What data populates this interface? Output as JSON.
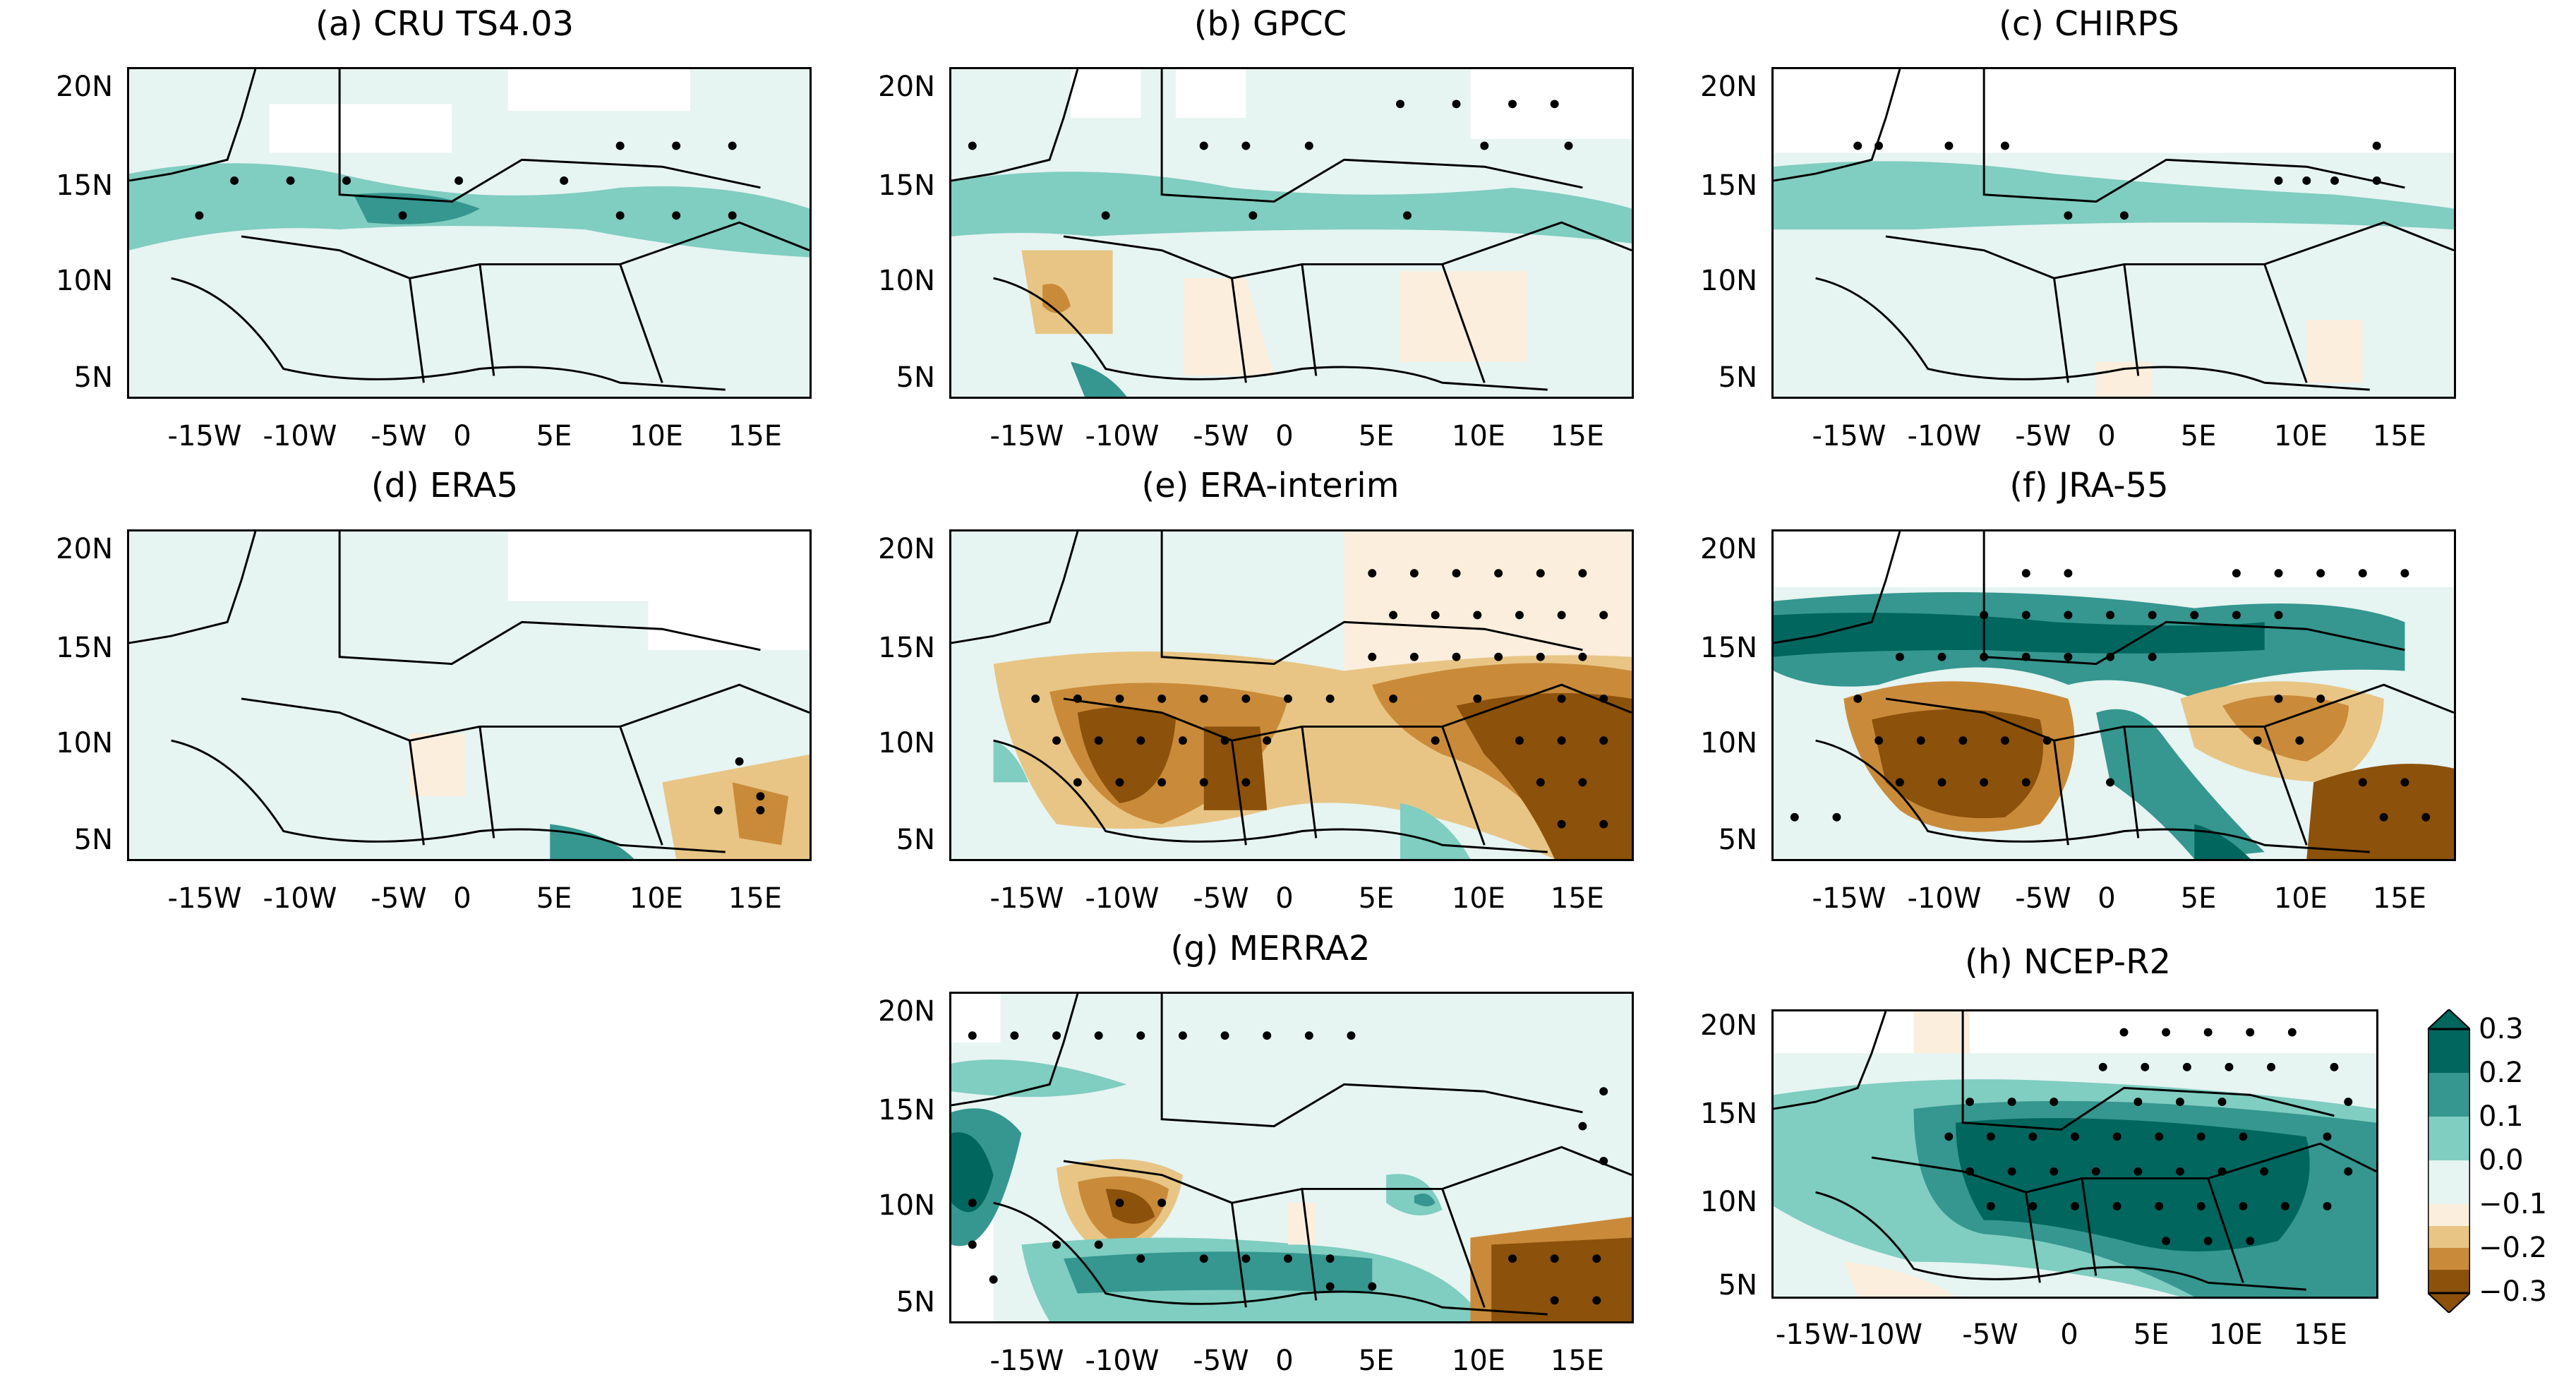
{
  "lat_labels": [
    "20N",
    "15N",
    "10N",
    "5N"
  ],
  "lon_labels_a": [
    "-15W",
    "-10W",
    "-5W",
    "0",
    "5E",
    "10E",
    "15E"
  ],
  "lon_labels_h": [
    "-15W-10W",
    "-5W",
    "0",
    "5E",
    "10E",
    "15E"
  ],
  "panels": {
    "a": {
      "title": "(a) CRU TS4.03"
    },
    "b": {
      "title": "(b) GPCC"
    },
    "c": {
      "title": "(c) CHIRPS"
    },
    "d": {
      "title": "(d) ERA5"
    },
    "e": {
      "title": "(e) ERA-interim"
    },
    "f": {
      "title": "(f) JRA-55"
    },
    "g": {
      "title": "(g) MERRA2"
    },
    "h": {
      "title": "(h) NCEP-R2"
    }
  },
  "colorbar": {
    "ticks": [
      "0.3",
      "0.2",
      "0.1",
      "0.0",
      "−0.1",
      "−0.2",
      "−0.3"
    ],
    "colors": {
      "pos3": "#01665e",
      "pos2": "#35978f",
      "pos1": "#80cdc1",
      "pos0": "#e6f4f2",
      "neg0": "#fbeedd",
      "neg1": "#e8c584",
      "neg2": "#c98b3a",
      "neg3": "#8c510a"
    }
  }
}
